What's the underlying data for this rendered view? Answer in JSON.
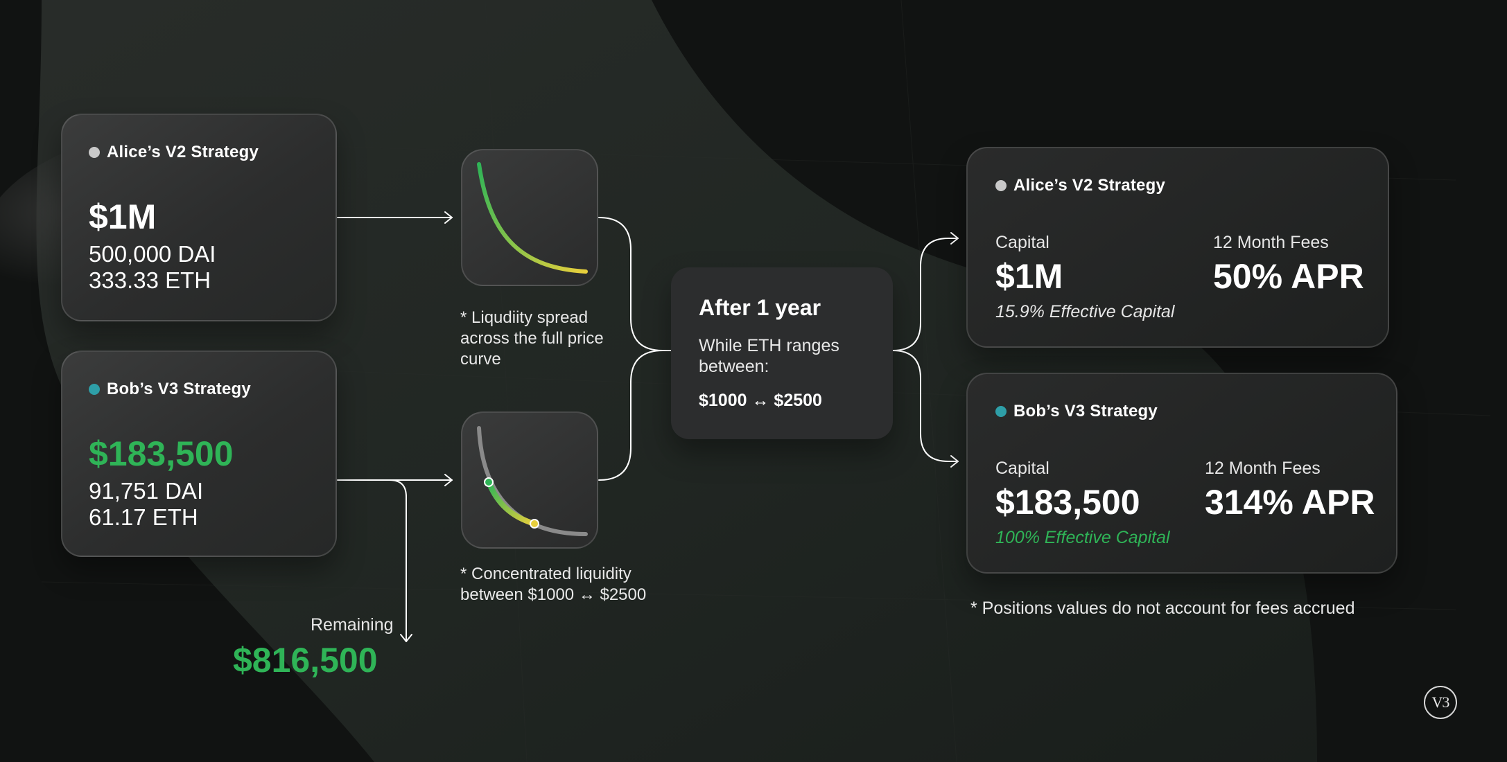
{
  "left": {
    "alice": {
      "title": "Alice’s V2 Strategy",
      "amount": "$1M",
      "dai": "500,000 DAI",
      "eth": "333.33 ETH",
      "dot_color": "#c9c9c9"
    },
    "bob": {
      "title": "Bob’s V3 Strategy",
      "amount": "$183,500",
      "dai": "91,751 DAI",
      "eth": "61.17 ETH",
      "dot_color": "#2e9fa8"
    },
    "remaining": {
      "label": "Remaining",
      "amount": "$816,500"
    }
  },
  "middle": {
    "v2_note": "* Liqudiity spread across the full price curve",
    "v3_note": "* Concentrated liquidity between $1000 ↔ $2500"
  },
  "center": {
    "title": "After 1 year",
    "subtitle": "While ETH ranges between:",
    "range": "$1000 ↔ $2500"
  },
  "right": {
    "alice": {
      "title": "Alice’s V2 Strategy",
      "capital_label": "Capital",
      "capital": "$1M",
      "effective": "15.9% Effective Capital",
      "fees_label": "12 Month Fees",
      "apr": "50% APR"
    },
    "bob": {
      "title": "Bob’s V3 Strategy",
      "capital_label": "Capital",
      "capital": "$183,500",
      "effective": "100% Effective Capital",
      "fees_label": "12 Month Fees",
      "apr": "314% APR"
    },
    "footnote": "* Positions values do not account for fees accrued"
  },
  "logo": {
    "text": "V3"
  },
  "colors": {
    "green": "#2fb457",
    "yellow": "#e8cf3c",
    "gray_curve": "#8a8a8a",
    "background": "#121413"
  },
  "icons": [
    "arrow-icon",
    "curve-v2-icon",
    "curve-v3-icon",
    "v3-logo-icon"
  ]
}
